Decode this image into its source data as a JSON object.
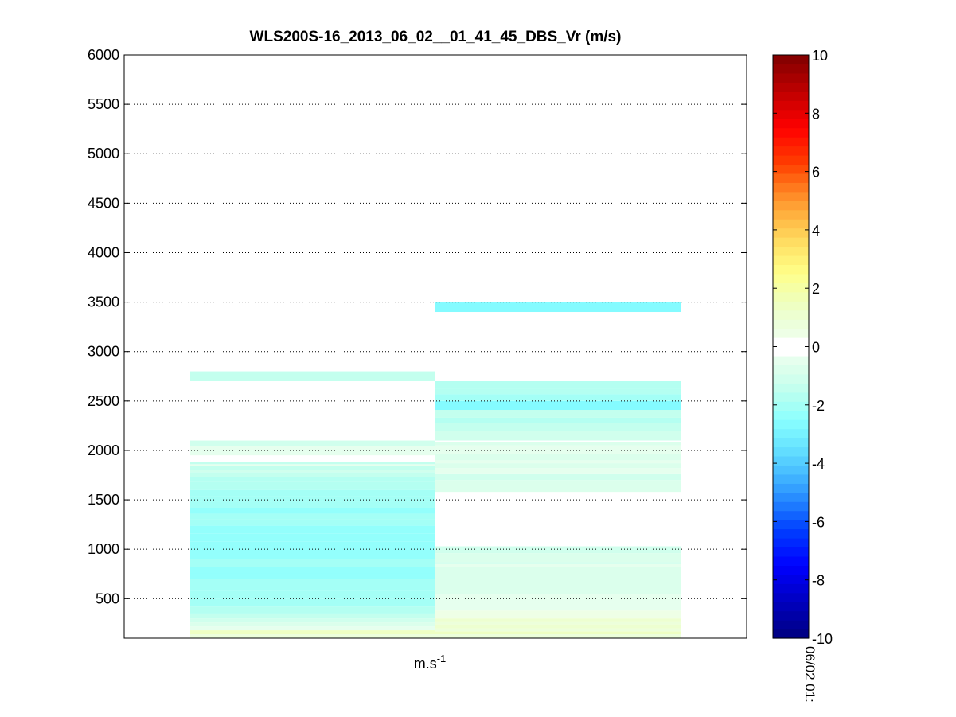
{
  "chart_data": {
    "type": "heatmap",
    "title": "WLS200S-16_2013_06_02__01_41_45_DBS_Vr (m/s)",
    "xlabel": "m.s",
    "xlabel_superscript": "-1",
    "ylabel": "",
    "ylim": [
      100,
      6000
    ],
    "yticks": [
      500,
      1000,
      1500,
      2000,
      2500,
      3000,
      3500,
      4000,
      4500,
      5000,
      5500,
      6000
    ],
    "grid": true,
    "colorbar": {
      "range": [
        -10,
        10
      ],
      "ticks": [
        -10,
        -8,
        -6,
        -4,
        -2,
        0,
        2,
        4,
        6,
        8,
        10
      ],
      "label": "06/02 01:"
    },
    "columns": [
      {
        "bands": [
          [
            100,
            140,
            0.8
          ],
          [
            140,
            180,
            1.4
          ],
          [
            180,
            220,
            -0.6
          ],
          [
            220,
            260,
            -0.9
          ],
          [
            260,
            300,
            -1.2
          ],
          [
            300,
            350,
            -1.5
          ],
          [
            350,
            420,
            -1.7
          ],
          [
            420,
            500,
            -1.9
          ],
          [
            500,
            580,
            -2.0
          ],
          [
            580,
            660,
            -1.9
          ],
          [
            660,
            700,
            -2.1
          ],
          [
            700,
            760,
            -2.3
          ],
          [
            760,
            820,
            -2.4
          ],
          [
            820,
            900,
            -2.1
          ],
          [
            900,
            980,
            -2.2
          ],
          [
            980,
            1080,
            -2.3
          ],
          [
            1080,
            1160,
            -2.5
          ],
          [
            1160,
            1240,
            -2.3
          ],
          [
            1240,
            1300,
            -2.1
          ],
          [
            1300,
            1360,
            -2.0
          ],
          [
            1360,
            1420,
            -2.2
          ],
          [
            1420,
            1480,
            -2.1
          ],
          [
            1480,
            1540,
            -2.0
          ],
          [
            1540,
            1600,
            -1.9
          ],
          [
            1600,
            1680,
            -1.8
          ],
          [
            1680,
            1730,
            -1.6
          ],
          [
            1730,
            1780,
            -1.4
          ],
          [
            1780,
            1800,
            -1.0
          ],
          [
            1800,
            1840,
            -1.3
          ],
          [
            1840,
            1860,
            -0.4
          ],
          [
            1860,
            1880,
            -1.5
          ],
          [
            1880,
            1950,
            0.0
          ],
          [
            1950,
            2040,
            -0.5
          ],
          [
            2040,
            2100,
            -1.1
          ],
          [
            2100,
            2700,
            0.0
          ],
          [
            2700,
            2800,
            -1.3
          ]
        ]
      },
      {
        "bands": [
          [
            100,
            140,
            0.8
          ],
          [
            140,
            170,
            1.3
          ],
          [
            170,
            200,
            0.9
          ],
          [
            200,
            240,
            1.2
          ],
          [
            240,
            270,
            0.8
          ],
          [
            270,
            300,
            1.1
          ],
          [
            300,
            380,
            0.5
          ],
          [
            380,
            550,
            -0.4
          ],
          [
            550,
            820,
            -0.9
          ],
          [
            820,
            850,
            -0.6
          ],
          [
            850,
            870,
            -1.0
          ],
          [
            870,
            960,
            -0.8
          ],
          [
            960,
            1030,
            -1.1
          ],
          [
            1030,
            1580,
            -0.3
          ],
          [
            1580,
            1700,
            -0.7
          ],
          [
            1700,
            1760,
            -1.0
          ],
          [
            1760,
            1820,
            -0.4
          ],
          [
            1820,
            1840,
            -0.7
          ],
          [
            1840,
            1870,
            -0.9
          ],
          [
            1870,
            1900,
            -0.6
          ],
          [
            1900,
            1960,
            -0.8
          ],
          [
            1960,
            2050,
            -0.6
          ],
          [
            2050,
            2080,
            -0.9
          ],
          [
            2080,
            2100,
            -0.3
          ],
          [
            2100,
            2200,
            -1.1
          ],
          [
            2200,
            2280,
            -1.3
          ],
          [
            2280,
            2330,
            -1.6
          ],
          [
            2330,
            2410,
            -1.4
          ],
          [
            2410,
            2500,
            -2.7
          ],
          [
            2500,
            2570,
            -1.9
          ],
          [
            2570,
            2620,
            -1.8
          ],
          [
            2620,
            2700,
            -1.7
          ],
          [
            3400,
            3500,
            -2.7
          ]
        ]
      }
    ]
  }
}
